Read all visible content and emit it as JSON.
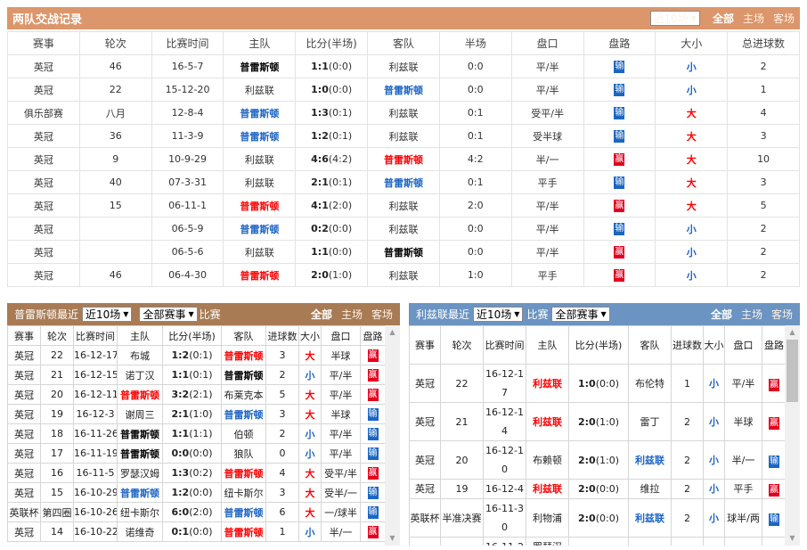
{
  "colors": {
    "h2h_header": "#dc966b",
    "home_header": "#a87b55",
    "away_header": "#6b94c2",
    "win": "#e4001e",
    "lose": "#1a66c4"
  },
  "h2h": {
    "title": "两队交战记录",
    "range": "近10场",
    "tabs": [
      "全部",
      "主场",
      "客场"
    ],
    "columns": [
      "赛事",
      "轮次",
      "比赛时间",
      "主队",
      "比分(半场)",
      "客队",
      "半场",
      "盘口",
      "盘路",
      "大小",
      "总进球数"
    ],
    "rows": [
      {
        "league": "英冠",
        "round": "46",
        "date": "16-5-7",
        "home": "普雷斯顿",
        "home_style": "k",
        "score": "1:1",
        "half": "(0:0)",
        "away": "利兹联",
        "away_style": "",
        "ht": "0:0",
        "handicap": "平/半",
        "result": "输",
        "ou": "小",
        "goals": "2"
      },
      {
        "league": "英冠",
        "round": "22",
        "date": "15-12-20",
        "home": "利兹联",
        "home_style": "",
        "score": "1:0",
        "half": "(0:0)",
        "away": "普雷斯顿",
        "away_style": "b",
        "ht": "0:0",
        "handicap": "平/半",
        "result": "输",
        "ou": "小",
        "goals": "1"
      },
      {
        "league": "俱乐部赛",
        "round": "八月",
        "date": "12-8-4",
        "home": "普雷斯顿",
        "home_style": "b",
        "score": "1:3",
        "half": "(0:1)",
        "away": "利兹联",
        "away_style": "",
        "ht": "0:1",
        "handicap": "受平/半",
        "result": "输",
        "ou": "大",
        "goals": "4"
      },
      {
        "league": "英冠",
        "round": "36",
        "date": "11-3-9",
        "home": "普雷斯顿",
        "home_style": "b",
        "score": "1:2",
        "half": "(0:1)",
        "away": "利兹联",
        "away_style": "",
        "ht": "0:1",
        "handicap": "受半球",
        "result": "输",
        "ou": "大",
        "goals": "3"
      },
      {
        "league": "英冠",
        "round": "9",
        "date": "10-9-29",
        "home": "利兹联",
        "home_style": "",
        "score": "4:6",
        "half": "(4:2)",
        "away": "普雷斯顿",
        "away_style": "r",
        "ht": "4:2",
        "handicap": "半/一",
        "result": "赢",
        "ou": "大",
        "goals": "10"
      },
      {
        "league": "英冠",
        "round": "40",
        "date": "07-3-31",
        "home": "利兹联",
        "home_style": "",
        "score": "2:1",
        "half": "(0:1)",
        "away": "普雷斯顿",
        "away_style": "b",
        "ht": "0:1",
        "handicap": "平手",
        "result": "输",
        "ou": "大",
        "goals": "3"
      },
      {
        "league": "英冠",
        "round": "15",
        "date": "06-11-1",
        "home": "普雷斯顿",
        "home_style": "r",
        "score": "4:1",
        "half": "(2:0)",
        "away": "利兹联",
        "away_style": "",
        "ht": "2:0",
        "handicap": "平/半",
        "result": "赢",
        "ou": "大",
        "goals": "5"
      },
      {
        "league": "英冠",
        "round": "",
        "date": "06-5-9",
        "home": "普雷斯顿",
        "home_style": "b",
        "score": "0:2",
        "half": "(0:0)",
        "away": "利兹联",
        "away_style": "",
        "ht": "0:0",
        "handicap": "平/半",
        "result": "输",
        "ou": "小",
        "goals": "2"
      },
      {
        "league": "英冠",
        "round": "",
        "date": "06-5-6",
        "home": "利兹联",
        "home_style": "",
        "score": "1:1",
        "half": "(0:0)",
        "away": "普雷斯顿",
        "away_style": "k",
        "ht": "0:0",
        "handicap": "平/半",
        "result": "赢",
        "ou": "小",
        "goals": "2"
      },
      {
        "league": "英冠",
        "round": "46",
        "date": "06-4-30",
        "home": "普雷斯顿",
        "home_style": "r",
        "score": "2:0",
        "half": "(1:0)",
        "away": "利兹联",
        "away_style": "",
        "ht": "1:0",
        "handicap": "平手",
        "result": "赢",
        "ou": "小",
        "goals": "2"
      }
    ]
  },
  "left": {
    "title": "普雷斯顿最近",
    "range": "近10场",
    "competition": "全部赛事",
    "suffix": "比赛",
    "tabs": [
      "全部",
      "主场",
      "客场"
    ],
    "columns": [
      "赛事",
      "轮次",
      "比赛时间",
      "主队",
      "比分(半场)",
      "客队",
      "进球数",
      "大小",
      "盘口",
      "盘路"
    ],
    "rows": [
      {
        "league": "英冠",
        "round": "22",
        "date": "16-12-17",
        "home": "布城",
        "home_style": "",
        "score": "1:2",
        "half": "(0:1)",
        "away": "普雷斯顿",
        "away_style": "r",
        "goals": "3",
        "ou": "大",
        "handicap": "半球",
        "result": "赢"
      },
      {
        "league": "英冠",
        "round": "21",
        "date": "16-12-15",
        "home": "诺丁汉",
        "home_style": "",
        "score": "1:1",
        "half": "(0:1)",
        "away": "普雷斯顿",
        "away_style": "k",
        "goals": "2",
        "ou": "小",
        "handicap": "平/半",
        "result": "赢"
      },
      {
        "league": "英冠",
        "round": "20",
        "date": "16-12-11",
        "home": "普雷斯顿",
        "home_style": "r",
        "score": "3:2",
        "half": "(2:1)",
        "away": "布莱克本",
        "away_style": "",
        "goals": "5",
        "ou": "大",
        "handicap": "平/半",
        "result": "赢"
      },
      {
        "league": "英冠",
        "round": "19",
        "date": "16-12-3",
        "home": "谢周三",
        "home_style": "",
        "score": "2:1",
        "half": "(1:0)",
        "away": "普雷斯顿",
        "away_style": "b",
        "goals": "3",
        "ou": "大",
        "handicap": "半球",
        "result": "输"
      },
      {
        "league": "英冠",
        "round": "18",
        "date": "16-11-26",
        "home": "普雷斯顿",
        "home_style": "k",
        "score": "1:1",
        "half": "(1:1)",
        "away": "伯顿",
        "away_style": "",
        "goals": "2",
        "ou": "小",
        "handicap": "平/半",
        "result": "输"
      },
      {
        "league": "英冠",
        "round": "17",
        "date": "16-11-19",
        "home": "普雷斯顿",
        "home_style": "k",
        "score": "0:0",
        "half": "(0:0)",
        "away": "狼队",
        "away_style": "",
        "goals": "0",
        "ou": "小",
        "handicap": "平/半",
        "result": "输"
      },
      {
        "league": "英冠",
        "round": "16",
        "date": "16-11-5",
        "home": "罗瑟汉姆",
        "home_style": "",
        "score": "1:3",
        "half": "(0:2)",
        "away": "普雷斯顿",
        "away_style": "r",
        "goals": "4",
        "ou": "大",
        "handicap": "受平/半",
        "result": "赢"
      },
      {
        "league": "英冠",
        "round": "15",
        "date": "16-10-29",
        "home": "普雷斯顿",
        "home_style": "b",
        "score": "1:2",
        "half": "(0:0)",
        "away": "纽卡斯尔",
        "away_style": "",
        "goals": "3",
        "ou": "大",
        "handicap": "受半/一",
        "result": "输"
      },
      {
        "league": "英联杯",
        "round": "第四圈",
        "date": "16-10-26",
        "home": "纽卡斯尔",
        "home_style": "",
        "score": "6:0",
        "half": "(2:0)",
        "away": "普雷斯顿",
        "away_style": "b",
        "goals": "6",
        "ou": "大",
        "handicap": "一/球半",
        "result": "输"
      },
      {
        "league": "英冠",
        "round": "14",
        "date": "16-10-22",
        "home": "诺维奇",
        "home_style": "",
        "score": "0:1",
        "half": "(0:0)",
        "away": "普雷斯顿",
        "away_style": "r",
        "goals": "1",
        "ou": "小",
        "handicap": "半/一",
        "result": "赢"
      }
    ]
  },
  "right": {
    "title": "利兹联最近",
    "range": "近10场",
    "competition": "全部赛事",
    "suffix": "比赛",
    "tabs": [
      "全部",
      "主场",
      "客场"
    ],
    "columns": [
      "赛事",
      "轮次",
      "比赛时间",
      "主队",
      "比分(半场)",
      "客队",
      "进球数",
      "大小",
      "盘口",
      "盘路"
    ],
    "rows": [
      {
        "league": "英冠",
        "round": "22",
        "date": "16-12-17",
        "home": "利兹联",
        "home_style": "r",
        "score": "1:0",
        "half": "(0:0)",
        "away": "布伦特",
        "away_style": "",
        "goals": "1",
        "ou": "小",
        "handicap": "平/半",
        "result": "赢"
      },
      {
        "league": "英冠",
        "round": "21",
        "date": "16-12-14",
        "home": "利兹联",
        "home_style": "r",
        "score": "2:0",
        "half": "(1:0)",
        "away": "雷丁",
        "away_style": "",
        "goals": "2",
        "ou": "小",
        "handicap": "半球",
        "result": "赢"
      },
      {
        "league": "英冠",
        "round": "20",
        "date": "16-12-10",
        "home": "布赖顿",
        "home_style": "",
        "score": "2:0",
        "half": "(1:0)",
        "away": "利兹联",
        "away_style": "b",
        "goals": "2",
        "ou": "小",
        "handicap": "半/一",
        "result": "输"
      },
      {
        "league": "英冠",
        "round": "19",
        "date": "16-12-4",
        "home": "利兹联",
        "home_style": "r",
        "score": "2:0",
        "half": "(0:0)",
        "away": "维拉",
        "away_style": "",
        "goals": "2",
        "ou": "小",
        "handicap": "平手",
        "result": "赢"
      },
      {
        "league": "英联杯",
        "round": "半准决赛",
        "date": "16-11-30",
        "home": "利物浦",
        "home_style": "",
        "score": "2:0",
        "half": "(0:0)",
        "away": "利兹联",
        "away_style": "b",
        "goals": "2",
        "ou": "小",
        "handicap": "球半/两",
        "result": "输"
      },
      {
        "league": "",
        "round": "",
        "date": "16-11-2",
        "home": "罗瑟汉",
        "home_style": "",
        "score": "",
        "half": "",
        "away": "",
        "away_style": "",
        "goals": "",
        "ou": "",
        "handicap": "",
        "result": ""
      }
    ]
  }
}
